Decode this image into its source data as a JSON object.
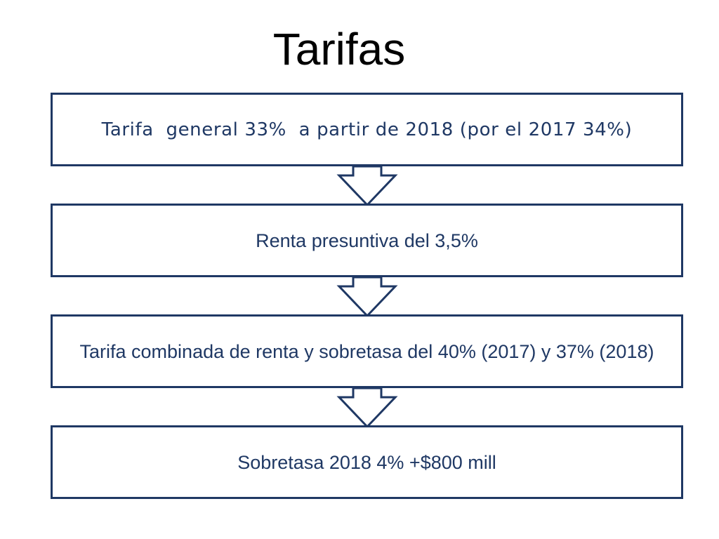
{
  "title": "Tarifas",
  "colors": {
    "accent": "#1f3864",
    "title": "#000000",
    "background": "#ffffff"
  },
  "steps": [
    {
      "text": "Tarifa  general 33%  a partir de 2018 (por el 2017 34%)"
    },
    {
      "text": "Renta presuntiva del 3,5%"
    },
    {
      "text": "Tarifa combinada de renta y sobretasa del 40% (2017) y 37% (2018)"
    },
    {
      "text": "Sobretasa 2018 4% +$800 mill"
    }
  ],
  "connectors": [
    {
      "icon": "down-arrow-icon"
    },
    {
      "icon": "down-arrow-icon"
    },
    {
      "icon": "down-arrow-icon"
    }
  ]
}
